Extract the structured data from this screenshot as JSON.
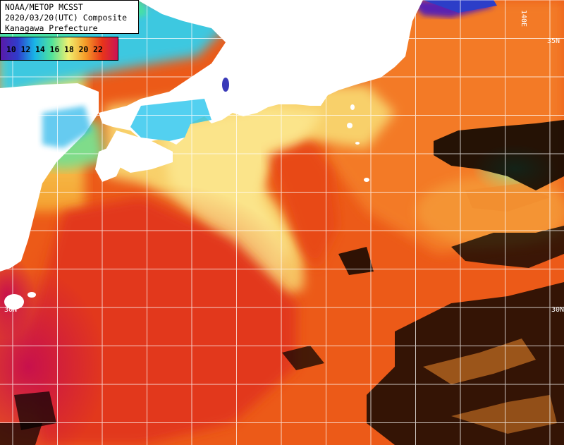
{
  "title": {
    "line1": "NOAA/METOP MCSST",
    "line2": "2020/03/20(UTC) Composite",
    "line3": "Kanagawa Prefecture"
  },
  "legend": {
    "labels": [
      "10",
      "12",
      "14",
      "16",
      "18",
      "20",
      "22"
    ],
    "colors": [
      "#5a1aa8",
      "#2f3ccc",
      "#19b4e8",
      "#4fe29a",
      "#f0f070",
      "#f59c28",
      "#e8351a",
      "#c8105a"
    ]
  },
  "grid_labels": {
    "lat_left": "30N",
    "lat_right_top": "35N",
    "lat_right_bottom": "30N",
    "lon_top": "140E"
  },
  "colors": {
    "land": "#ffffff",
    "sea_warm": "#e23c14",
    "sea_mid": "#f17a24",
    "sea_cool": "#f9d070",
    "coastal": "#33c8ee",
    "grid": "#ffffff",
    "cloud": "#000000"
  }
}
